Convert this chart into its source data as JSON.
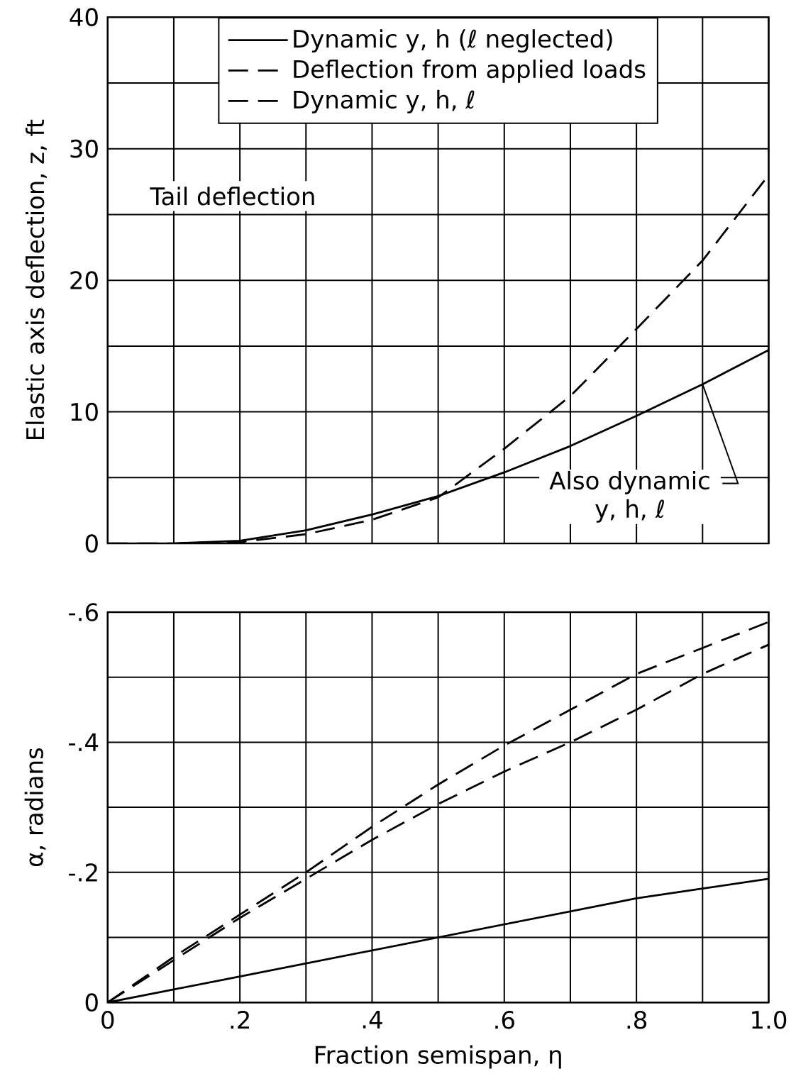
{
  "chart_data": [
    {
      "type": "line",
      "ylabel": "Elastic axis deflection, z, ft",
      "xlim": [
        0,
        1.0
      ],
      "ylim": [
        0,
        40
      ],
      "xticks": [
        0,
        0.1,
        0.2,
        0.3,
        0.4,
        0.5,
        0.6,
        0.7,
        0.8,
        0.9,
        1.0
      ],
      "yticks": [
        0,
        {
          "value": 5,
          "label": null
        },
        10,
        {
          "value": 15,
          "label": null
        },
        20,
        {
          "value": 25,
          "label": null
        },
        30,
        {
          "value": 35,
          "label": null
        },
        40
      ],
      "tick_labels": "y",
      "grid": true,
      "legend": "top",
      "x": [
        0,
        0.1,
        0.2,
        0.3,
        0.4,
        0.5,
        0.6,
        0.7,
        0.8,
        0.9,
        1.0
      ],
      "series": [
        {
          "name": "Dynamic y, h (ℓ neglected)",
          "color": "#000000",
          "line_style": "solid",
          "values": [
            0,
            0,
            0.2,
            1.0,
            2.2,
            3.6,
            5.4,
            7.4,
            9.7,
            12.1,
            14.7
          ]
        },
        {
          "name": "Deflection from applied loads",
          "color": "#000000",
          "line_style": "dashed",
          "values": [
            0,
            0,
            0.1,
            0.7,
            1.8,
            3.5,
            7.2,
            11.2,
            16.3,
            21.5,
            28
          ]
        },
        {
          "name": "Dynamic y, h, ℓ",
          "color": "#000000",
          "line_style": "dashed",
          "values": [
            null,
            null,
            null,
            null,
            null,
            null,
            null,
            null,
            null,
            null,
            null
          ]
        }
      ],
      "annotations": [
        "Tail deflection",
        {
          "text": "Also dynamic y, h, ℓ",
          "x": 0.9,
          "y": 12.1
        }
      ]
    },
    {
      "type": "line",
      "xlabel": "Fraction semispan, η",
      "ylabel": "α, radians",
      "xlim": [
        0,
        1.0
      ],
      "ylim": [
        0,
        -0.6
      ],
      "xticks": [
        0,
        {
          "value": 0.1,
          "label": null
        },
        {
          "value": 0.2,
          "label": ".2"
        },
        {
          "value": 0.3,
          "label": null
        },
        {
          "value": 0.4,
          "label": ".4"
        },
        {
          "value": 0.5,
          "label": null
        },
        {
          "value": 0.6,
          "label": ".6"
        },
        {
          "value": 0.7,
          "label": null
        },
        {
          "value": 0.8,
          "label": ".8"
        },
        {
          "value": 0.9,
          "label": null
        },
        {
          "value": 1.0,
          "label": "1.0"
        }
      ],
      "yticks": [
        0,
        {
          "value": -0.1,
          "label": null
        },
        {
          "value": -0.2,
          "label": "-.2"
        },
        {
          "value": -0.3,
          "label": null
        },
        {
          "value": -0.4,
          "label": "-.4"
        },
        {
          "value": -0.5,
          "label": null
        },
        {
          "value": -0.6,
          "label": "-.6"
        }
      ],
      "grid": true,
      "x": [
        0,
        0.1,
        0.2,
        0.3,
        0.4,
        0.5,
        0.6,
        0.7,
        0.8,
        0.9,
        1.0
      ],
      "series": [
        {
          "color": "#000000",
          "line_style": "solid",
          "values": [
            0,
            -0.02,
            -0.04,
            -0.06,
            -0.08,
            -0.1,
            -0.12,
            -0.14,
            -0.16,
            -0.175,
            -0.19
          ]
        },
        {
          "color": "#000000",
          "line_style": "dashed",
          "values": [
            0,
            -0.07,
            -0.135,
            -0.2,
            -0.27,
            -0.335,
            -0.395,
            -0.45,
            -0.505,
            -0.545,
            -0.585
          ]
        },
        {
          "color": "#000000",
          "line_style": "dashed",
          "values": [
            0,
            -0.065,
            -0.13,
            -0.19,
            -0.25,
            -0.305,
            -0.355,
            -0.4,
            -0.45,
            -0.505,
            -0.55
          ]
        }
      ]
    }
  ]
}
